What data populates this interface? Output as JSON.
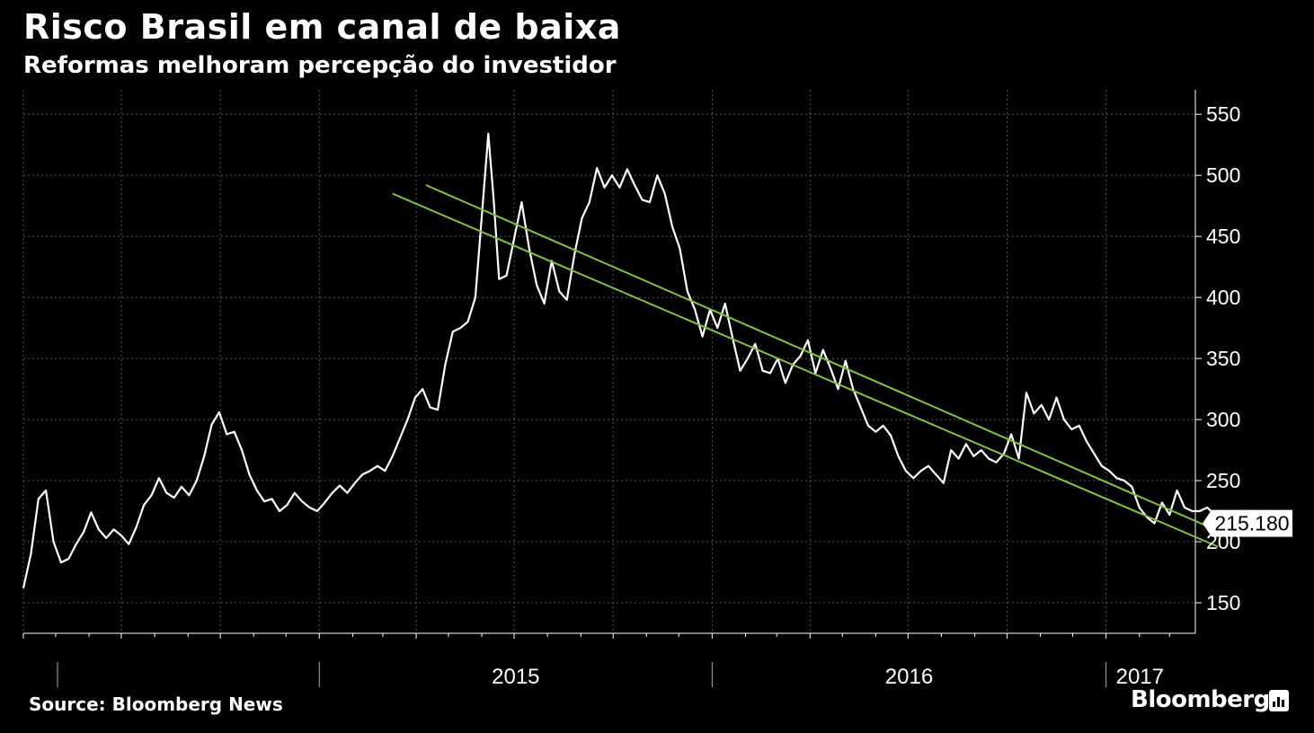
{
  "header": {
    "title": "Risco Brasil em canal de baixa",
    "subtitle": "Reformas melhoram percepção do investidor"
  },
  "footer": {
    "source": "Source: Bloomberg News",
    "brand": "Bloomberg"
  },
  "chart_data": {
    "type": "line",
    "title": "Risco Brasil em canal de baixa",
    "subtitle": "Reformas melhoram percepção do investidor",
    "xlabel": "",
    "ylabel": "",
    "ylim": [
      125,
      570
    ],
    "xlim": [
      "2014-04-01",
      "2017-03-25"
    ],
    "y_ticks": [
      150,
      200,
      250,
      300,
      350,
      400,
      450,
      500,
      550
    ],
    "x_year_labels": [
      {
        "label": "2015",
        "date": "2015-01-01"
      },
      {
        "label": "2016",
        "date": "2016-01-01"
      },
      {
        "label": "2017",
        "date": "2017-01-01"
      }
    ],
    "grid": true,
    "last_value_label": "215.180",
    "series": [
      {
        "color": "#ffffff",
        "points": [
          [
            "2014-04-01",
            162
          ],
          [
            "2014-04-08",
            190
          ],
          [
            "2014-04-15",
            235
          ],
          [
            "2014-04-22",
            242
          ],
          [
            "2014-04-29",
            200
          ],
          [
            "2014-05-06",
            183
          ],
          [
            "2014-05-13",
            186
          ],
          [
            "2014-05-20",
            198
          ],
          [
            "2014-05-27",
            208
          ],
          [
            "2014-06-03",
            224
          ],
          [
            "2014-06-10",
            210
          ],
          [
            "2014-06-17",
            203
          ],
          [
            "2014-06-24",
            210
          ],
          [
            "2014-07-01",
            205
          ],
          [
            "2014-07-08",
            198
          ],
          [
            "2014-07-15",
            212
          ],
          [
            "2014-07-22",
            230
          ],
          [
            "2014-07-29",
            238
          ],
          [
            "2014-08-05",
            252
          ],
          [
            "2014-08-12",
            240
          ],
          [
            "2014-08-19",
            236
          ],
          [
            "2014-08-26",
            245
          ],
          [
            "2014-09-02",
            238
          ],
          [
            "2014-09-09",
            250
          ],
          [
            "2014-09-16",
            270
          ],
          [
            "2014-09-23",
            296
          ],
          [
            "2014-09-30",
            306
          ],
          [
            "2014-10-07",
            288
          ],
          [
            "2014-10-14",
            290
          ],
          [
            "2014-10-21",
            275
          ],
          [
            "2014-10-28",
            255
          ],
          [
            "2014-11-04",
            242
          ],
          [
            "2014-11-11",
            233
          ],
          [
            "2014-11-18",
            235
          ],
          [
            "2014-11-25",
            225
          ],
          [
            "2014-12-02",
            230
          ],
          [
            "2014-12-09",
            240
          ],
          [
            "2014-12-16",
            233
          ],
          [
            "2014-12-23",
            228
          ],
          [
            "2014-12-30",
            225
          ],
          [
            "2015-01-06",
            232
          ],
          [
            "2015-01-13",
            240
          ],
          [
            "2015-01-20",
            246
          ],
          [
            "2015-01-27",
            240
          ],
          [
            "2015-02-03",
            248
          ],
          [
            "2015-02-10",
            255
          ],
          [
            "2015-02-17",
            258
          ],
          [
            "2015-02-24",
            262
          ],
          [
            "2015-03-03",
            258
          ],
          [
            "2015-03-10",
            270
          ],
          [
            "2015-03-17",
            285
          ],
          [
            "2015-03-24",
            300
          ],
          [
            "2015-03-31",
            318
          ],
          [
            "2015-04-07",
            325
          ],
          [
            "2015-04-14",
            310
          ],
          [
            "2015-04-21",
            308
          ],
          [
            "2015-04-28",
            345
          ],
          [
            "2015-05-05",
            372
          ],
          [
            "2015-05-12",
            375
          ],
          [
            "2015-05-19",
            380
          ],
          [
            "2015-05-26",
            400
          ],
          [
            "2015-06-02",
            478
          ],
          [
            "2015-06-07",
            534
          ],
          [
            "2015-06-12",
            480
          ],
          [
            "2015-06-17",
            415
          ],
          [
            "2015-06-24",
            418
          ],
          [
            "2015-07-01",
            448
          ],
          [
            "2015-07-08",
            478
          ],
          [
            "2015-07-15",
            440
          ],
          [
            "2015-07-22",
            410
          ],
          [
            "2015-07-29",
            395
          ],
          [
            "2015-08-05",
            430
          ],
          [
            "2015-08-12",
            405
          ],
          [
            "2015-08-19",
            398
          ],
          [
            "2015-08-26",
            435
          ],
          [
            "2015-09-02",
            465
          ],
          [
            "2015-09-09",
            478
          ],
          [
            "2015-09-16",
            506
          ],
          [
            "2015-09-23",
            490
          ],
          [
            "2015-09-30",
            500
          ],
          [
            "2015-10-07",
            490
          ],
          [
            "2015-10-14",
            505
          ],
          [
            "2015-10-21",
            492
          ],
          [
            "2015-10-28",
            480
          ],
          [
            "2015-11-04",
            478
          ],
          [
            "2015-11-11",
            500
          ],
          [
            "2015-11-18",
            485
          ],
          [
            "2015-11-25",
            458
          ],
          [
            "2015-12-02",
            440
          ],
          [
            "2015-12-09",
            405
          ],
          [
            "2015-12-16",
            390
          ],
          [
            "2015-12-23",
            368
          ],
          [
            "2015-12-30",
            390
          ],
          [
            "2016-01-06",
            375
          ],
          [
            "2016-01-13",
            395
          ],
          [
            "2016-01-20",
            367
          ],
          [
            "2016-01-27",
            340
          ],
          [
            "2016-02-03",
            350
          ],
          [
            "2016-02-10",
            362
          ],
          [
            "2016-02-17",
            340
          ],
          [
            "2016-02-24",
            338
          ],
          [
            "2016-03-02",
            350
          ],
          [
            "2016-03-09",
            330
          ],
          [
            "2016-03-16",
            345
          ],
          [
            "2016-03-23",
            352
          ],
          [
            "2016-03-30",
            365
          ],
          [
            "2016-04-06",
            338
          ],
          [
            "2016-04-13",
            357
          ],
          [
            "2016-04-20",
            342
          ],
          [
            "2016-04-27",
            325
          ],
          [
            "2016-05-04",
            348
          ],
          [
            "2016-05-11",
            325
          ],
          [
            "2016-05-18",
            310
          ],
          [
            "2016-05-25",
            295
          ],
          [
            "2016-06-01",
            290
          ],
          [
            "2016-06-08",
            295
          ],
          [
            "2016-06-15",
            287
          ],
          [
            "2016-06-22",
            270
          ],
          [
            "2016-06-29",
            258
          ],
          [
            "2016-07-06",
            252
          ],
          [
            "2016-07-13",
            258
          ],
          [
            "2016-07-20",
            262
          ],
          [
            "2016-07-27",
            255
          ],
          [
            "2016-08-03",
            248
          ],
          [
            "2016-08-10",
            275
          ],
          [
            "2016-08-17",
            268
          ],
          [
            "2016-08-24",
            280
          ],
          [
            "2016-08-31",
            270
          ],
          [
            "2016-09-07",
            275
          ],
          [
            "2016-09-14",
            268
          ],
          [
            "2016-09-21",
            265
          ],
          [
            "2016-09-28",
            272
          ],
          [
            "2016-10-05",
            288
          ],
          [
            "2016-10-12",
            268
          ],
          [
            "2016-10-19",
            322
          ],
          [
            "2016-10-26",
            305
          ],
          [
            "2016-11-02",
            312
          ],
          [
            "2016-11-09",
            300
          ],
          [
            "2016-11-16",
            318
          ],
          [
            "2016-11-23",
            300
          ],
          [
            "2016-11-30",
            292
          ],
          [
            "2016-12-07",
            295
          ],
          [
            "2016-12-14",
            282
          ],
          [
            "2016-12-21",
            272
          ],
          [
            "2016-12-28",
            262
          ],
          [
            "2017-01-04",
            258
          ],
          [
            "2017-01-11",
            252
          ],
          [
            "2017-01-18",
            250
          ],
          [
            "2017-01-25",
            245
          ],
          [
            "2017-02-01",
            228
          ],
          [
            "2017-02-08",
            220
          ],
          [
            "2017-02-15",
            215
          ],
          [
            "2017-02-22",
            232
          ],
          [
            "2017-03-01",
            222
          ],
          [
            "2017-03-08",
            242
          ],
          [
            "2017-03-15",
            228
          ],
          [
            "2017-03-22",
            225
          ],
          [
            "2017-03-29",
            225
          ],
          [
            "2017-04-05",
            228
          ],
          [
            "2017-04-12",
            222
          ],
          [
            "2017-04-19",
            215
          ]
        ]
      },
      {
        "color": "#7fc43a",
        "points": [
          [
            "2015-04-10",
            492
          ],
          [
            "2017-04-25",
            205
          ]
        ]
      },
      {
        "color": "#7fc43a",
        "points": [
          [
            "2015-03-10",
            485
          ],
          [
            "2017-04-15",
            196
          ]
        ]
      }
    ],
    "colors": {
      "background": "#000000",
      "line": "#ffffff",
      "channel": "#7fc43a",
      "grid": "#555555"
    }
  }
}
